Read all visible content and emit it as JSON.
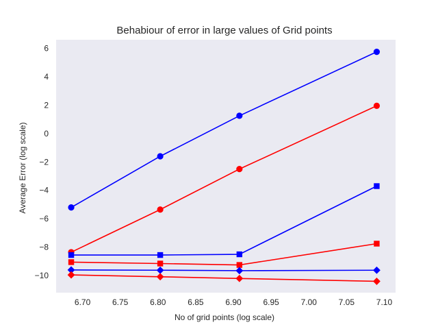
{
  "chart_data": {
    "type": "line",
    "title": "Behabiour of error in large values of Grid points",
    "xlabel": "No of grid points (log scale)",
    "ylabel": "Average Error (log scale)",
    "xlim": [
      6.665,
      7.115
    ],
    "ylim": [
      -11.2,
      6.6
    ],
    "xticks": [
      6.7,
      6.75,
      6.8,
      6.85,
      6.9,
      6.95,
      7.0,
      7.05,
      7.1
    ],
    "xtick_labels": [
      "6.70",
      "6.75",
      "6.80",
      "6.85",
      "6.90",
      "6.95",
      "7.00",
      "7.05",
      "7.10"
    ],
    "yticks": [
      -10,
      -8,
      -6,
      -4,
      -2,
      0,
      2,
      4,
      6
    ],
    "ytick_labels": [
      "−10",
      "−8",
      "−6",
      "−4",
      "−2",
      "0",
      "2",
      "4",
      "6"
    ],
    "grid": false,
    "background": "#eaeaf2",
    "x": [
      6.685,
      6.803,
      6.908,
      7.09
    ],
    "series": [
      {
        "color": "#0000ff",
        "marker": "circle",
        "values": [
          -5.2,
          -1.6,
          1.25,
          5.75
        ]
      },
      {
        "color": "#ff0000",
        "marker": "circle",
        "values": [
          -8.35,
          -5.35,
          -2.5,
          1.95
        ]
      },
      {
        "color": "#0000ff",
        "marker": "square",
        "values": [
          -8.55,
          -8.55,
          -8.5,
          -3.7
        ]
      },
      {
        "color": "#ff0000",
        "marker": "square",
        "values": [
          -9.05,
          -9.15,
          -9.25,
          -7.75
        ]
      },
      {
        "color": "#0000ff",
        "marker": "diamond",
        "values": [
          -9.6,
          -9.62,
          -9.65,
          -9.62
        ]
      },
      {
        "color": "#ff0000",
        "marker": "diamond",
        "values": [
          -9.95,
          -10.08,
          -10.2,
          -10.4
        ]
      }
    ]
  }
}
